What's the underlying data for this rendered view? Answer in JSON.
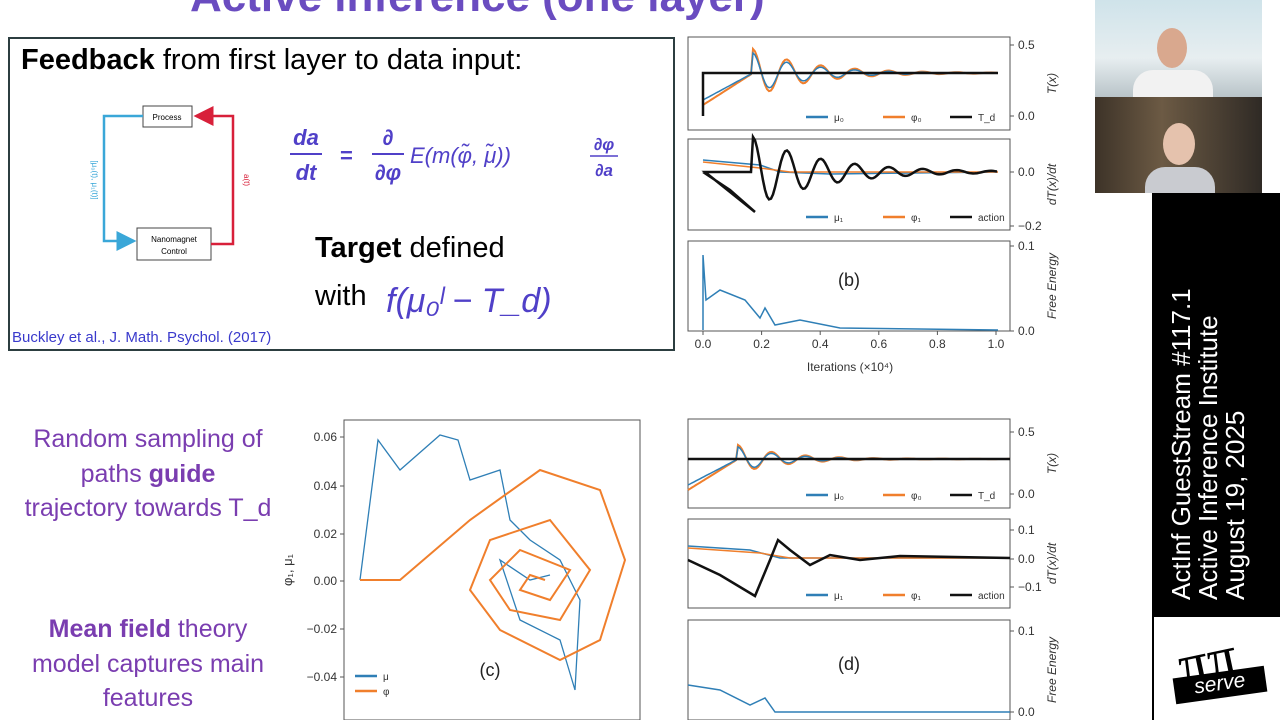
{
  "slide": {
    "title": "Active inference (one layer)",
    "box": {
      "heading_bold": "Feedback",
      "heading_rest": "from first layer to data input:",
      "process": "Process",
      "control_1": "Nanomagnet",
      "control_2": "Control",
      "left_label": "[μ₀(t), μ₁(t)]",
      "right_label": "a(t)",
      "eq_lhs_num": "da",
      "eq_lhs_den": "dt",
      "eq_sign": "=",
      "eq_d_num": "∂",
      "eq_d_den": "∂φ",
      "eq_body": "E(m(φ̃, μ̃))",
      "eq_rhs_num": "∂φ",
      "eq_rhs_den": "∂a",
      "target_bold": "Target",
      "target_rest": "defined",
      "target_with": "with",
      "target_expr": "f(μ₀ˡ − T_d)",
      "citation": "Buckley et al., J. Math. Psychol. (2017)"
    },
    "note_1": {
      "line_1": "Random sampling of",
      "line_2a": "paths",
      "line_2b": "guide",
      "line_3": "trajectory towards T_d"
    },
    "note_2": {
      "line_1a": "Mean field",
      "line_1b": "theory",
      "line_2": "model captures main",
      "line_3": "features"
    },
    "plots_b": {
      "panel_1": {
        "yticks": [
          "0.5",
          "0.0"
        ],
        "ylabel": "T(x)",
        "legend": [
          "μ₀",
          "φ₀",
          "T_d"
        ]
      },
      "panel_2": {
        "yticks": [
          "0.0",
          "−0.2"
        ],
        "ylabel": "dT(x)/dt",
        "legend": [
          "μ₁",
          "φ₁",
          "action"
        ]
      },
      "panel_3": {
        "yticks": [
          "0.1",
          "0.0"
        ],
        "ylabel": "Free Energy",
        "tag": "(b)"
      },
      "xticks": [
        "0.0",
        "0.2",
        "0.4",
        "0.6",
        "0.8",
        "1.0"
      ],
      "xlabel": "Iterations (×10⁴)"
    },
    "plot_c": {
      "yticks": [
        "0.06",
        "0.04",
        "0.02",
        "0.00",
        "−0.02",
        "−0.04"
      ],
      "ylabel": "φ₁, μ₁",
      "legend": [
        "μ",
        "φ"
      ],
      "tag": "(c)"
    },
    "plots_d": {
      "panel_1": {
        "yticks": [
          "0.5",
          "0.0"
        ],
        "ylabel": "T(x)",
        "legend": [
          "μ₀",
          "φ₀",
          "T_d"
        ]
      },
      "panel_2": {
        "yticks": [
          "0.1",
          "0.0",
          "−0.1"
        ],
        "ylabel": "dT(x)/dt",
        "legend": [
          "μ₁",
          "φ₁",
          "action"
        ]
      },
      "panel_3": {
        "yticks": [
          "0.1",
          "0.0"
        ],
        "ylabel": "Free Energy",
        "tag": "(d)"
      }
    }
  },
  "stream": {
    "line_1": "ActInf GuestStream #117.1",
    "line_2": "Active Inference Institute",
    "line_3": "August 19, 2025",
    "logo_text": "serve"
  }
}
